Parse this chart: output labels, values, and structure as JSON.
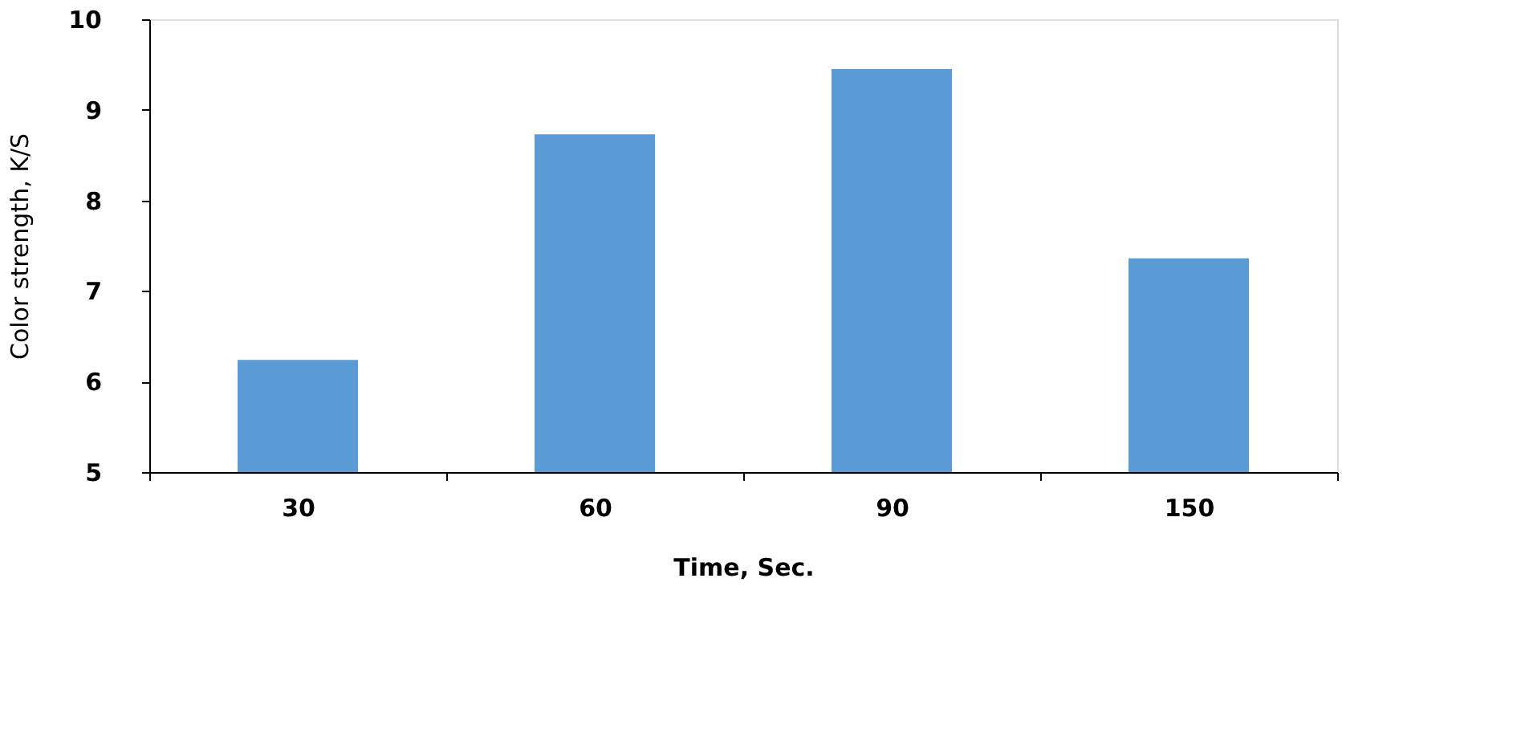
{
  "chart_data": {
    "type": "bar",
    "xlabel": "Time, Sec.",
    "ylabel": "Color strength, K/S",
    "categories": [
      "30",
      "60",
      "90",
      "150"
    ],
    "values": [
      6.24,
      8.73,
      9.45,
      7.36
    ],
    "color": "#5b9bd5",
    "ylim": [
      5,
      10
    ],
    "yticks": [
      5,
      6,
      7,
      8,
      9,
      10
    ],
    "grid": false
  }
}
